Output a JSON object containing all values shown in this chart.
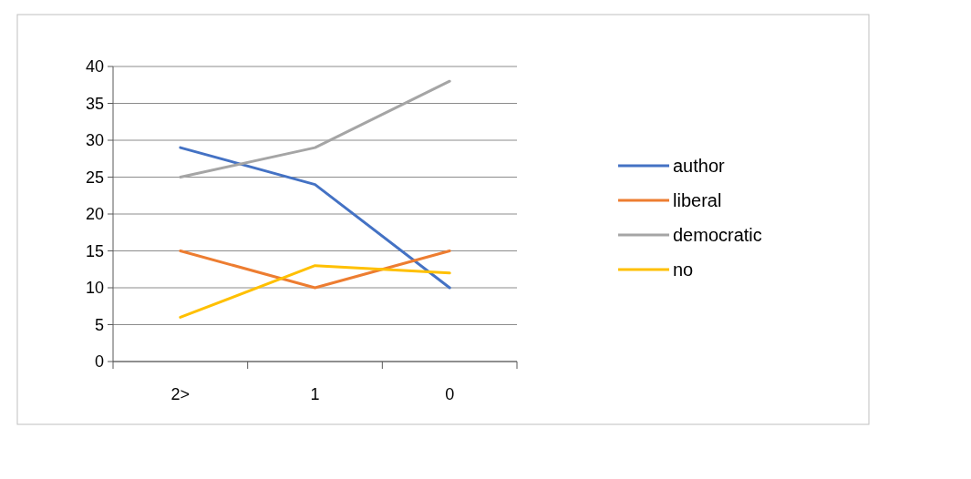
{
  "chart_data": {
    "type": "line",
    "categories": [
      "2>",
      "1",
      "0"
    ],
    "series": [
      {
        "name": "author",
        "color": "#4472c4",
        "values": [
          29,
          24,
          10
        ]
      },
      {
        "name": "liberal",
        "color": "#ed7d31",
        "values": [
          15,
          10,
          15
        ]
      },
      {
        "name": "democratic",
        "color": "#a5a5a5",
        "values": [
          25,
          29,
          38
        ]
      },
      {
        "name": "no",
        "color": "#ffc000",
        "values": [
          6,
          13,
          12
        ]
      }
    ],
    "ylim": [
      0,
      40
    ],
    "yticks": [
      0,
      5,
      10,
      15,
      20,
      25,
      30,
      35,
      40
    ],
    "grid": "y",
    "legend": "right",
    "marker": "none",
    "line_style": "solid"
  }
}
